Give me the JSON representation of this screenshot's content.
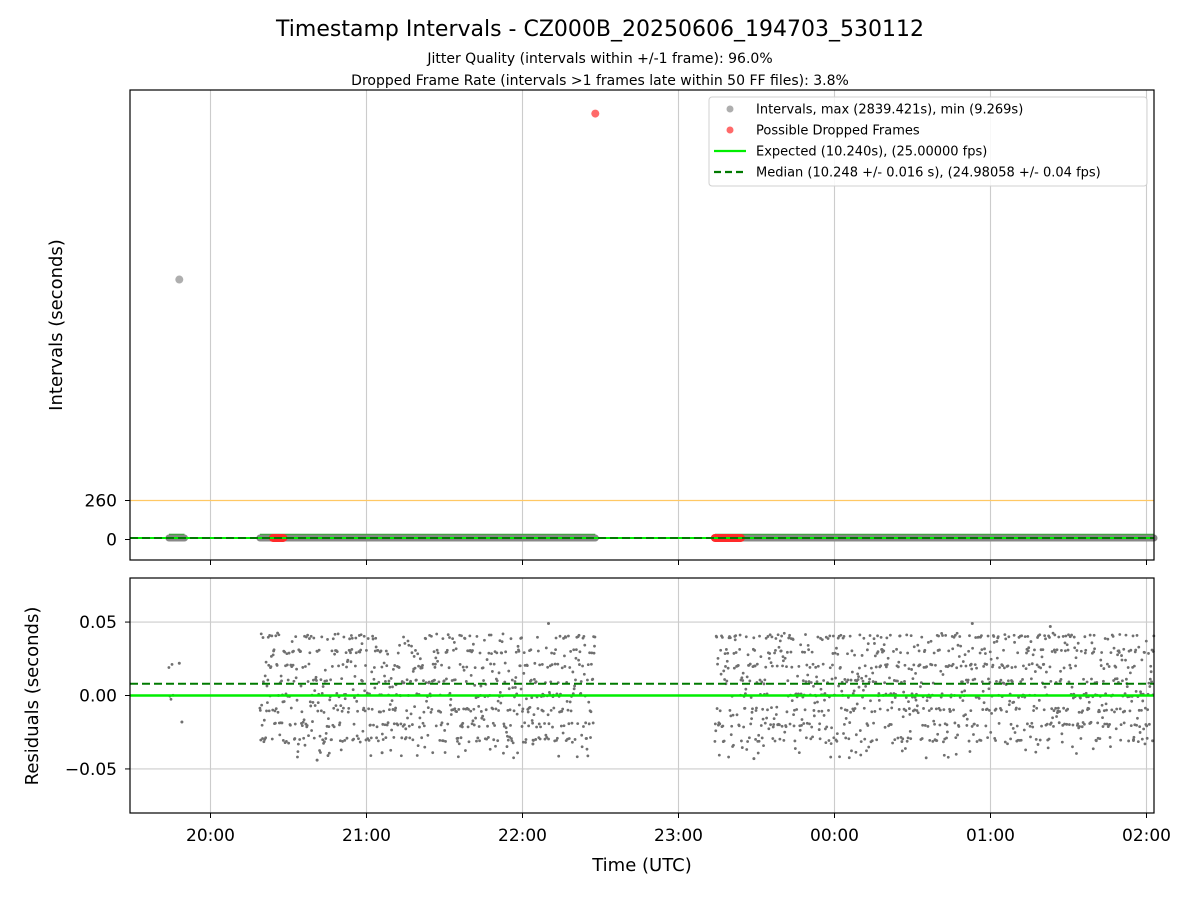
{
  "chart_data": {
    "type": "scatter",
    "title": "Timestamp Intervals - CZ000B_20250606_194703_530112",
    "subtitle_lines": [
      "Jitter Quality (intervals within +/-1 frame): 96.0%",
      "Dropped Frame Rate (intervals >1 frames late within 50 FF files): 3.8%"
    ],
    "xlabel": "Time (UTC)",
    "x_ticks": [
      "20:00",
      "21:00",
      "22:00",
      "23:00",
      "00:00",
      "01:00",
      "02:00"
    ],
    "top_panel": {
      "ylabel": "Intervals (seconds)",
      "y_ticks": [
        0,
        260
      ],
      "threshold_line": 260,
      "max_interval": 2839.421,
      "min_interval": 9.269,
      "expected": 10.24,
      "median": 10.248,
      "outliers": [
        {
          "time": "19:48",
          "value": 1733,
          "kind": "interval"
        },
        {
          "time": "22:28",
          "value": 2839.421,
          "kind": "dropped"
        }
      ],
      "segments": [
        {
          "start": "19:44",
          "end": "19:50"
        },
        {
          "start": "20:19",
          "end": "22:28"
        },
        {
          "start": "23:14",
          "end": "02:04"
        }
      ],
      "dropped_clusters": [
        {
          "start": "20:24",
          "end": "20:28"
        },
        {
          "start": "23:14",
          "end": "23:24"
        }
      ]
    },
    "bottom_panel": {
      "ylabel": "Residuals (seconds)",
      "y_ticks": [
        "0.05",
        "0.00",
        "−0.05"
      ],
      "ylim": [
        -0.08,
        0.08
      ],
      "expected_residual": 0.0,
      "median_residual": 0.008,
      "sample_points": [
        {
          "time": "19:48",
          "value": 0.022
        },
        {
          "time": "19:49",
          "value": -0.018
        },
        {
          "time": "20:41",
          "value": -0.044
        },
        {
          "time": "21:06",
          "value": -0.039
        },
        {
          "time": "22:04",
          "value": -0.033
        },
        {
          "time": "22:10",
          "value": 0.049
        },
        {
          "time": "23:29",
          "value": -0.043
        },
        {
          "time": "00:53",
          "value": 0.049
        },
        {
          "time": "01:23",
          "value": 0.047
        },
        {
          "time": "01:55",
          "value": -0.03
        }
      ]
    },
    "legend": {
      "placement": "top-right",
      "entries": [
        {
          "label": "Intervals, max (2839.421s), min (9.269s)",
          "kind": "marker",
          "color": "#a0a0a0"
        },
        {
          "label": "Possible Dropped Frames",
          "kind": "marker",
          "color": "#ff5050"
        },
        {
          "label": "Expected (10.240s), (25.00000 fps)",
          "kind": "line",
          "color": "#00ee00"
        },
        {
          "label": "Median (10.248 +/- 0.016 s), (24.98058 +/- 0.04 fps)",
          "kind": "dashed",
          "color": "#007a00"
        }
      ]
    },
    "colors": {
      "threshold": "#ffc864",
      "interval_marker": "#a0a0a0",
      "dropped_marker": "#ff5050",
      "expected_line": "#00ee00",
      "median_line": "#007a00",
      "residual_point": "#707070",
      "grid": "#cccccc"
    }
  }
}
